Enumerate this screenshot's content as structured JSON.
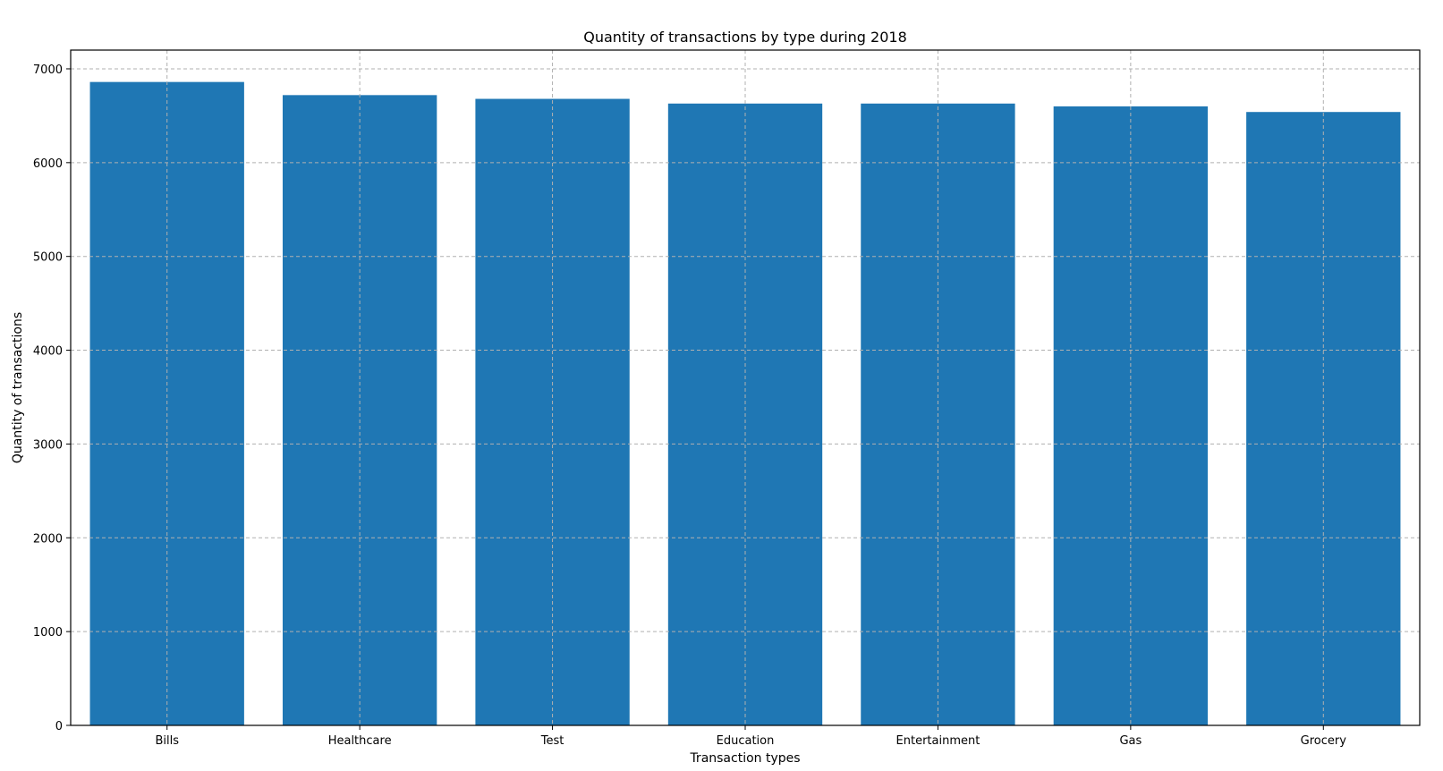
{
  "chart_data": {
    "type": "bar",
    "title": "Quantity of transactions by type during 2018",
    "xlabel": "Transaction types",
    "ylabel": "Quantity of transactions",
    "categories": [
      "Bills",
      "Healthcare",
      "Test",
      "Education",
      "Entertainment",
      "Gas",
      "Grocery"
    ],
    "values": [
      6860,
      6720,
      6680,
      6630,
      6630,
      6600,
      6540
    ],
    "ylim": [
      0,
      7200
    ],
    "yticks": [
      0,
      1000,
      2000,
      3000,
      4000,
      5000,
      6000,
      7000
    ],
    "grid": true,
    "legend": "none",
    "bar_color": "#1f77b4",
    "grid_color": "#b0b0b0"
  }
}
